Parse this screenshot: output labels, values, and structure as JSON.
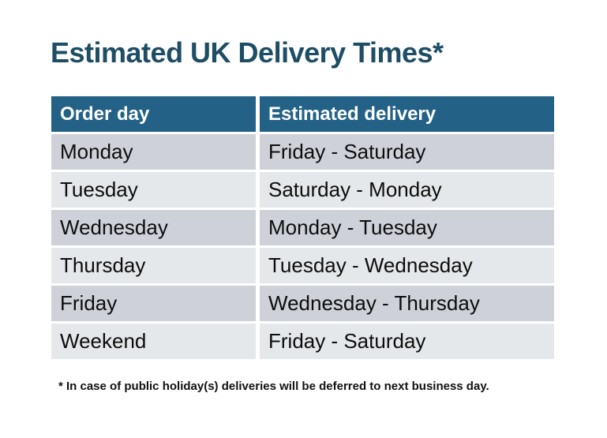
{
  "title": {
    "text": "Estimated UK Delivery Times*"
  },
  "table": {
    "columns": [
      "Order day",
      "Estimated delivery"
    ],
    "rows": [
      [
        "Monday",
        "Friday - Saturday"
      ],
      [
        "Tuesday",
        "Saturday - Monday"
      ],
      [
        "Wednesday",
        "Monday - Tuesday"
      ],
      [
        "Thursday",
        "Tuesday - Wednesday"
      ],
      [
        "Friday",
        "Wednesday - Thursday"
      ],
      [
        "Weekend",
        "Friday - Saturday"
      ]
    ]
  },
  "footnote": {
    "text": "* In case of public holiday(s) deliveries will be deferred to next business day."
  },
  "colors": {
    "page_bg": "#ffffff",
    "title_color": "#1e4d66",
    "header_bg": "#246186",
    "header_text": "#ffffff",
    "row_dark": "#ced2d8",
    "row_light": "#e5e8ea"
  },
  "chart_data": {
    "type": "table",
    "title": "Estimated UK Delivery Times*",
    "columns": [
      "Order day",
      "Estimated delivery"
    ],
    "rows": [
      [
        "Monday",
        "Friday - Saturday"
      ],
      [
        "Tuesday",
        "Saturday - Monday"
      ],
      [
        "Wednesday",
        "Monday - Tuesday"
      ],
      [
        "Thursday",
        "Tuesday - Wednesday"
      ],
      [
        "Friday",
        "Wednesday - Thursday"
      ],
      [
        "Weekend",
        "Friday - Saturday"
      ]
    ],
    "footnote": "* In case of public holiday(s) deliveries will be deferred to next business day.",
    "layout": {
      "header_style": "teal-band",
      "row_style": "alternating-gray",
      "grid": "white-gaps"
    }
  }
}
